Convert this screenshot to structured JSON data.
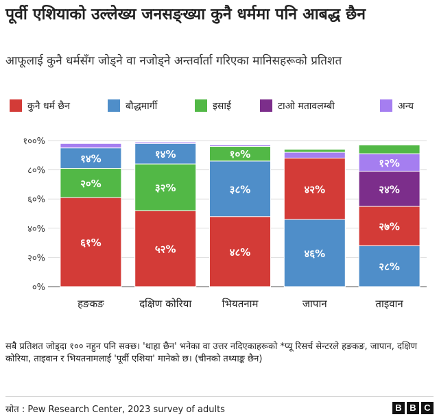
{
  "header": {
    "title": "पूर्वी एशियाको उल्लेख्य जनसङ्ख्या कुनै धर्ममा पनि आबद्ध छैन",
    "subtitle": "आफूलाई कुनै धर्मसँग जोड्ने वा नजोड्ने अन्तर्वार्ता गरिएका मानिसहरूको प्रतिशत"
  },
  "legend": [
    {
      "label": "कुनै धर्म छैन",
      "color": "#d33b37"
    },
    {
      "label": "बौद्धमार्गी",
      "color": "#4f8ec9"
    },
    {
      "label": "इसाई",
      "color": "#52b846"
    },
    {
      "label": "टाओ मतावलम्बी",
      "color": "#7c2e8b"
    },
    {
      "label": "अन्य",
      "color": "#a57ef0"
    }
  ],
  "chart_data": {
    "type": "bar",
    "stacked": true,
    "categories": [
      "हङकङ",
      "दक्षिण कोरिया",
      "भियतनाम",
      "जापान",
      "ताइवान"
    ],
    "y_tick_labels": [
      "०%",
      "२०%",
      "४०%",
      "६०%",
      "८०%",
      "१००%"
    ],
    "ylim": [
      0,
      100
    ],
    "grid": true,
    "legend_position": "top",
    "series": [
      {
        "name": "कुनै धर्म छैन",
        "color": "#d33b37",
        "values": [
          61,
          52,
          48,
          42,
          27
        ],
        "labels": [
          "६१%",
          "५२%",
          "४८%",
          "४२%",
          "२७%"
        ]
      },
      {
        "name": "बौद्धमार्गी",
        "color": "#4f8ec9",
        "values": [
          14,
          14,
          38,
          46,
          28
        ],
        "labels": [
          "१४%",
          "१४%",
          "३८%",
          "४६%",
          "२८%"
        ]
      },
      {
        "name": "इसाई",
        "color": "#52b846",
        "values": [
          20,
          32,
          10,
          2,
          6
        ],
        "labels": [
          "२०%",
          "३२%",
          "१०%",
          "",
          ""
        ]
      },
      {
        "name": "टाओ मतावलम्बी",
        "color": "#7c2e8b",
        "values": [
          0,
          0,
          0,
          0,
          24
        ],
        "labels": [
          "",
          "",
          "",
          "",
          "२४%"
        ]
      },
      {
        "name": "अन्य",
        "color": "#a57ef0",
        "values": [
          3,
          1,
          1,
          4,
          12
        ],
        "labels": [
          "",
          "",
          "",
          "",
          "१२%"
        ]
      }
    ],
    "order_bottom_to_top": [
      [
        "कुनै धर्म छैन",
        "इसाई",
        "बौद्धमार्गी",
        "अन्य"
      ],
      [
        "कुनै धर्म छैन",
        "इसाई",
        "बौद्धमार्गी",
        "अन्य"
      ],
      [
        "कुनै धर्म छैन",
        "बौद्धमार्गी",
        "इसाई",
        "अन्य"
      ],
      [
        "बौद्धमार्गी",
        "कुनै धर्म छैन",
        "अन्य",
        "इसाई"
      ],
      [
        "बौद्धमार्गी",
        "कुनै धर्म छैन",
        "टाओ मतावलम्बी",
        "अन्य",
        "इसाई"
      ]
    ]
  },
  "footnote": "सबै प्रतिशत जोड्दा १०० नहुन पनि सक्छ। 'थाहा छैन' भनेका वा उत्तर नदिएकाहरूको *प्यू रिसर्च सेन्टरले हङकङ, जापान, दक्षिण कोरिया, ताइवान र भियतनामलाई 'पूर्वी एशिया' मानेको छ। (चीनको तथ्याङ्क छैन)",
  "footer": {
    "source": "स्रोत : Pew Research Center, 2023 survey of adults",
    "logo": [
      "B",
      "B",
      "C"
    ]
  }
}
